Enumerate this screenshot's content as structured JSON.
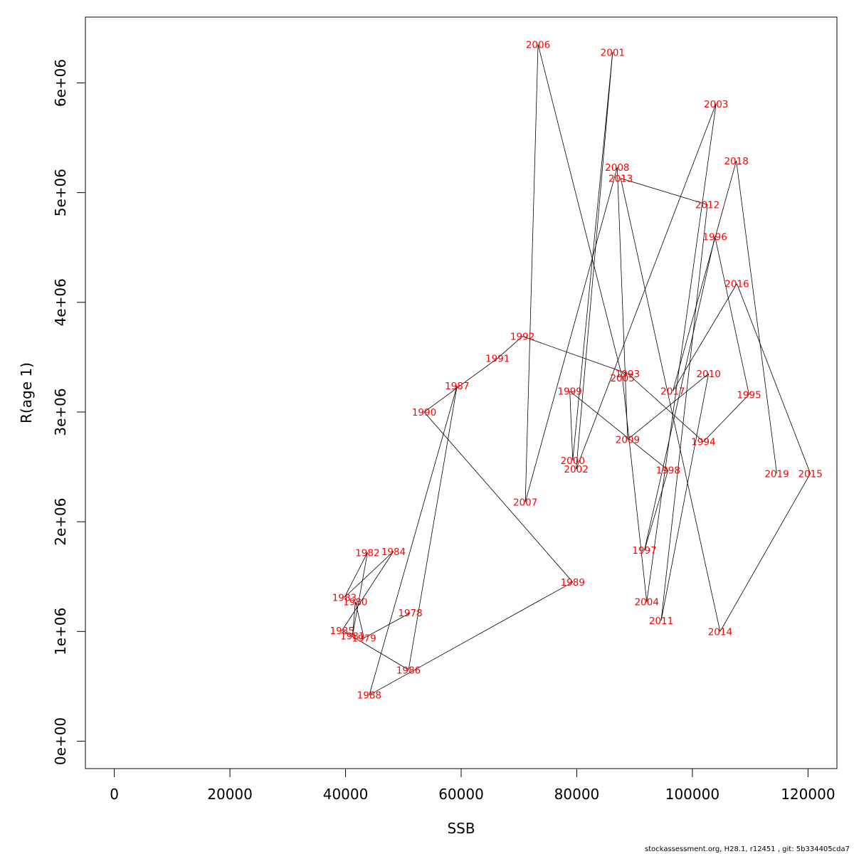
{
  "chart_data": {
    "type": "scatter",
    "xlabel": "SSB",
    "ylabel": "R(age 1)",
    "xlim": [
      -5000,
      125000
    ],
    "ylim": [
      -250000,
      6600000
    ],
    "xticks": [
      0,
      20000,
      40000,
      60000,
      80000,
      100000,
      120000
    ],
    "xtick_labels": [
      "0",
      "20000",
      "40000",
      "60000",
      "80000",
      "100000",
      "120000"
    ],
    "yticks": [
      0,
      1000000,
      2000000,
      3000000,
      4000000,
      5000000,
      6000000
    ],
    "ytick_labels": [
      "0e+00",
      "1e+06",
      "2e+06",
      "3e+06",
      "4e+06",
      "5e+06",
      "6e+06"
    ],
    "grid": false,
    "connected": true,
    "points": [
      {
        "year": "1978",
        "x": 51200,
        "y": 1170000
      },
      {
        "year": "1979",
        "x": 43200,
        "y": 940000
      },
      {
        "year": "1980",
        "x": 41700,
        "y": 1270000
      },
      {
        "year": "1981",
        "x": 41200,
        "y": 960000
      },
      {
        "year": "1982",
        "x": 43800,
        "y": 1720000
      },
      {
        "year": "1983",
        "x": 39800,
        "y": 1310000
      },
      {
        "year": "1984",
        "x": 48300,
        "y": 1730000
      },
      {
        "year": "1985",
        "x": 39400,
        "y": 1010000
      },
      {
        "year": "1986",
        "x": 50900,
        "y": 650000
      },
      {
        "year": "1987",
        "x": 59300,
        "y": 3240000
      },
      {
        "year": "1988",
        "x": 44100,
        "y": 420000
      },
      {
        "year": "1989",
        "x": 79300,
        "y": 1450000
      },
      {
        "year": "1990",
        "x": 53600,
        "y": 3000000
      },
      {
        "year": "1991",
        "x": 66300,
        "y": 3490000
      },
      {
        "year": "1992",
        "x": 70600,
        "y": 3690000
      },
      {
        "year": "1993",
        "x": 88800,
        "y": 3350000
      },
      {
        "year": "1994",
        "x": 101900,
        "y": 2730000
      },
      {
        "year": "1995",
        "x": 109800,
        "y": 3160000
      },
      {
        "year": "1996",
        "x": 103900,
        "y": 4600000
      },
      {
        "year": "1997",
        "x": 91700,
        "y": 1740000
      },
      {
        "year": "1998",
        "x": 95800,
        "y": 2470000
      },
      {
        "year": "1999",
        "x": 78800,
        "y": 3190000
      },
      {
        "year": "2000",
        "x": 79300,
        "y": 2560000
      },
      {
        "year": "2001",
        "x": 86200,
        "y": 6280000
      },
      {
        "year": "2002",
        "x": 79900,
        "y": 2480000
      },
      {
        "year": "2003",
        "x": 104100,
        "y": 5810000
      },
      {
        "year": "2004",
        "x": 92100,
        "y": 1270000
      },
      {
        "year": "2005",
        "x": 87900,
        "y": 3310000
      },
      {
        "year": "2006",
        "x": 73300,
        "y": 6350000
      },
      {
        "year": "2007",
        "x": 71100,
        "y": 2180000
      },
      {
        "year": "2008",
        "x": 87000,
        "y": 5230000
      },
      {
        "year": "2009",
        "x": 88800,
        "y": 2750000
      },
      {
        "year": "2010",
        "x": 102800,
        "y": 3350000
      },
      {
        "year": "2011",
        "x": 94600,
        "y": 1100000
      },
      {
        "year": "2012",
        "x": 102600,
        "y": 4890000
      },
      {
        "year": "2013",
        "x": 87600,
        "y": 5130000
      },
      {
        "year": "2014",
        "x": 104800,
        "y": 1000000
      },
      {
        "year": "2015",
        "x": 120400,
        "y": 2440000
      },
      {
        "year": "2016",
        "x": 107700,
        "y": 4170000
      },
      {
        "year": "2017",
        "x": 96600,
        "y": 3190000
      },
      {
        "year": "2018",
        "x": 107600,
        "y": 5290000
      },
      {
        "year": "2019",
        "x": 114600,
        "y": 2440000
      }
    ]
  },
  "footer": {
    "text": "stockassessment.org, H28.1, r12451 , git: 5b334405cda7"
  }
}
